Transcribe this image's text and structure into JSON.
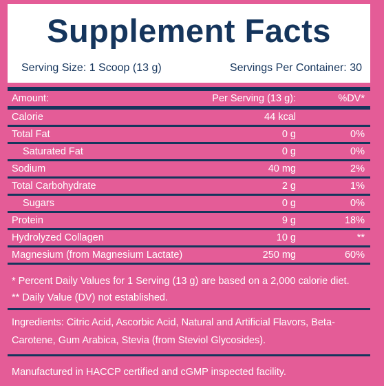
{
  "header": {
    "title": "Supplement Facts",
    "serving_size": "Serving Size: 1 Scoop (13 g)",
    "servings_per_container": "Servings Per Container: 30"
  },
  "columns": {
    "amount": "Amount:",
    "per_serving": "Per Serving (13 g):",
    "dv": "%DV*"
  },
  "rows": [
    {
      "name": "Calorie",
      "amount": "44 kcal",
      "dv": ""
    },
    {
      "name": "Total Fat",
      "amount": "0 g",
      "dv": "0%"
    },
    {
      "name": "Saturated Fat",
      "amount": "0 g",
      "dv": "0%"
    },
    {
      "name": "Sodium",
      "amount": "40 mg",
      "dv": "2%"
    },
    {
      "name": "Total Carbohydrate",
      "amount": "2 g",
      "dv": "1%"
    },
    {
      "name": "Sugars",
      "amount": "0 g",
      "dv": "0%"
    },
    {
      "name": "Protein",
      "amount": "9 g",
      "dv": "18%"
    },
    {
      "name": "Hydrolyzed Collagen",
      "amount": "10 g",
      "dv": "**"
    },
    {
      "name": "Magnesium (from Magnesium Lactate)",
      "amount": "250 mg",
      "dv": "60%"
    }
  ],
  "notes": {
    "note1": "* Percent Daily Values for 1 Serving (13 g) are based on a 2,000 calorie diet.",
    "note2": "** Daily Value (DV) not established."
  },
  "ingredients": "Ingredients: Citric Acid, Ascorbic Acid, Natural and Artificial Flavors, Beta-Carotene, Gum Arabica, Stevia (from Steviol Glycosides).",
  "manufactured": "Manufactured in HACCP certified and cGMP inspected facility.",
  "colors": {
    "background": "#e45c97",
    "navy": "#15355c",
    "text": "#ffffff"
  }
}
